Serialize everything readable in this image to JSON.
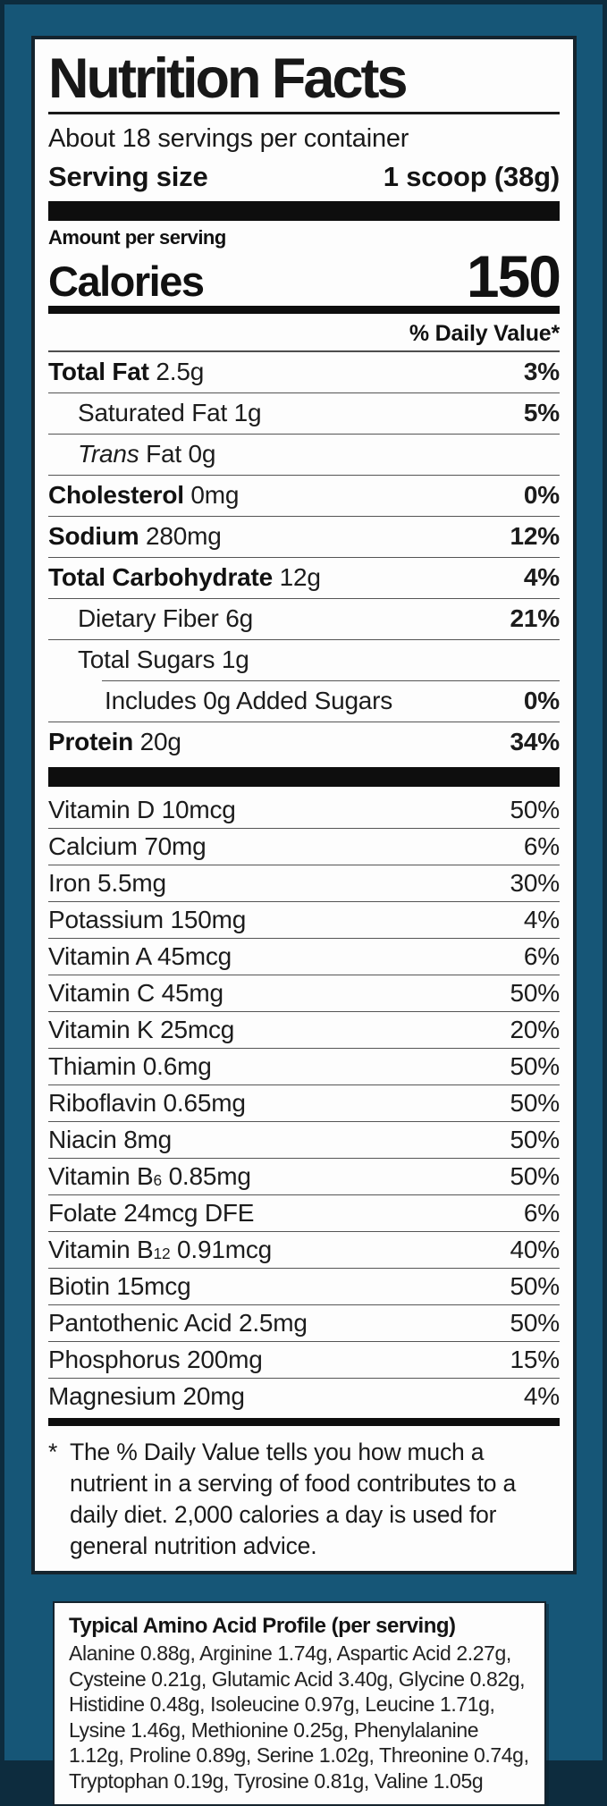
{
  "colors": {
    "label_background": "#165677",
    "edge": "#0d2c3e",
    "panel_background": "#fdfdfd",
    "panel_border": "#15242e",
    "text": "#111111"
  },
  "nutrition": {
    "title": "Nutrition Facts",
    "servings_per_container": "About 18 servings per container",
    "serving_size_label": "Serving size",
    "serving_size_value": "1 scoop (38g)",
    "amount_per_serving_label": "Amount per serving",
    "calories_label": "Calories",
    "calories_value": "150",
    "daily_value_header": "% Daily Value*",
    "rows": [
      {
        "bold": "Total Fat",
        "italic": "",
        "text": " 2.5g",
        "pct": "3%",
        "pct_bold": true,
        "indent": 0,
        "sep": "full"
      },
      {
        "bold": "",
        "italic": "",
        "text": "Saturated Fat 1g",
        "pct": "5%",
        "pct_bold": true,
        "indent": 1,
        "sep": "full"
      },
      {
        "bold": "",
        "italic": "Trans",
        "text": " Fat 0g",
        "pct": "",
        "pct_bold": false,
        "indent": 1,
        "sep": "full"
      },
      {
        "bold": "Cholesterol",
        "italic": "",
        "text": " 0mg",
        "pct": "0%",
        "pct_bold": true,
        "indent": 0,
        "sep": "full"
      },
      {
        "bold": "Sodium",
        "italic": "",
        "text": " 280mg",
        "pct": "12%",
        "pct_bold": true,
        "indent": 0,
        "sep": "full"
      },
      {
        "bold": "Total Carbohydrate",
        "italic": "",
        "text": " 12g",
        "pct": "4%",
        "pct_bold": true,
        "indent": 0,
        "sep": "full"
      },
      {
        "bold": "",
        "italic": "",
        "text": "Dietary Fiber 6g",
        "pct": "21%",
        "pct_bold": true,
        "indent": 1,
        "sep": "full"
      },
      {
        "bold": "",
        "italic": "",
        "text": "Total Sugars 1g",
        "pct": "",
        "pct_bold": false,
        "indent": 1,
        "sep": "full"
      },
      {
        "bold": "",
        "italic": "",
        "text": "Includes 0g Added Sugars",
        "pct": "0%",
        "pct_bold": true,
        "indent": 2,
        "sep": "indent"
      },
      {
        "bold": "Protein",
        "italic": "",
        "text": " 20g",
        "pct": "34%",
        "pct_bold": true,
        "indent": 0,
        "sep": "full"
      }
    ],
    "vitamins": [
      {
        "name": "Vitamin D",
        "sub": "",
        "amount": "10mcg",
        "pct": "50%",
        "sep": "none"
      },
      {
        "name": "Calcium",
        "sub": "",
        "amount": "70mg",
        "pct": "6%",
        "sep": "full"
      },
      {
        "name": "Iron",
        "sub": "",
        "amount": "5.5mg",
        "pct": "30%",
        "sep": "full"
      },
      {
        "name": "Potassium",
        "sub": "",
        "amount": "150mg",
        "pct": "4%",
        "sep": "full"
      },
      {
        "name": "Vitamin A",
        "sub": "",
        "amount": "45mcg",
        "pct": "6%",
        "sep": "full"
      },
      {
        "name": "Vitamin C",
        "sub": "",
        "amount": "45mg",
        "pct": "50%",
        "sep": "full"
      },
      {
        "name": "Vitamin K",
        "sub": "",
        "amount": "25mcg",
        "pct": "20%",
        "sep": "full"
      },
      {
        "name": "Thiamin",
        "sub": "",
        "amount": "0.6mg",
        "pct": "50%",
        "sep": "full"
      },
      {
        "name": "Riboflavin",
        "sub": "",
        "amount": "0.65mg",
        "pct": "50%",
        "sep": "full"
      },
      {
        "name": "Niacin",
        "sub": "",
        "amount": "8mg",
        "pct": "50%",
        "sep": "full"
      },
      {
        "name": "Vitamin B",
        "sub": "6",
        "amount": "0.85mg",
        "pct": "50%",
        "sep": "full"
      },
      {
        "name": "Folate",
        "sub": "",
        "amount": "24mcg DFE",
        "pct": "6%",
        "sep": "full"
      },
      {
        "name": "Vitamin B",
        "sub": "12",
        "amount": "0.91mcg",
        "pct": "40%",
        "sep": "full"
      },
      {
        "name": "Biotin",
        "sub": "",
        "amount": "15mcg",
        "pct": "50%",
        "sep": "full"
      },
      {
        "name": "Pantothenic Acid",
        "sub": "",
        "amount": "2.5mg",
        "pct": "50%",
        "sep": "full"
      },
      {
        "name": "Phosphorus",
        "sub": "",
        "amount": "200mg",
        "pct": "15%",
        "sep": "full"
      },
      {
        "name": "Magnesium",
        "sub": "",
        "amount": "20mg",
        "pct": "4%",
        "sep": "full"
      }
    ],
    "footnote_marker": "*",
    "footnote": "The % Daily Value tells you how much a nutrient in a serving of food contributes to a daily diet. 2,000 calories a day is used for general nutrition advice."
  },
  "amino": {
    "title": "Typical Amino Acid Profile (per serving)",
    "text": "Alanine 0.88g, Arginine 1.74g, Aspartic Acid 2.27g, Cysteine 0.21g, Glutamic Acid 3.40g, Glycine 0.82g, Histidine 0.48g, Isoleucine 0.97g, Leucine 1.71g, Lysine 1.46g, Methionine 0.25g, Phenylalanine 1.12g, Proline 0.89g, Serine 1.02g, Threonine 0.74g, Tryptophan 0.19g, Tyrosine 0.81g, Valine 1.05g"
  }
}
